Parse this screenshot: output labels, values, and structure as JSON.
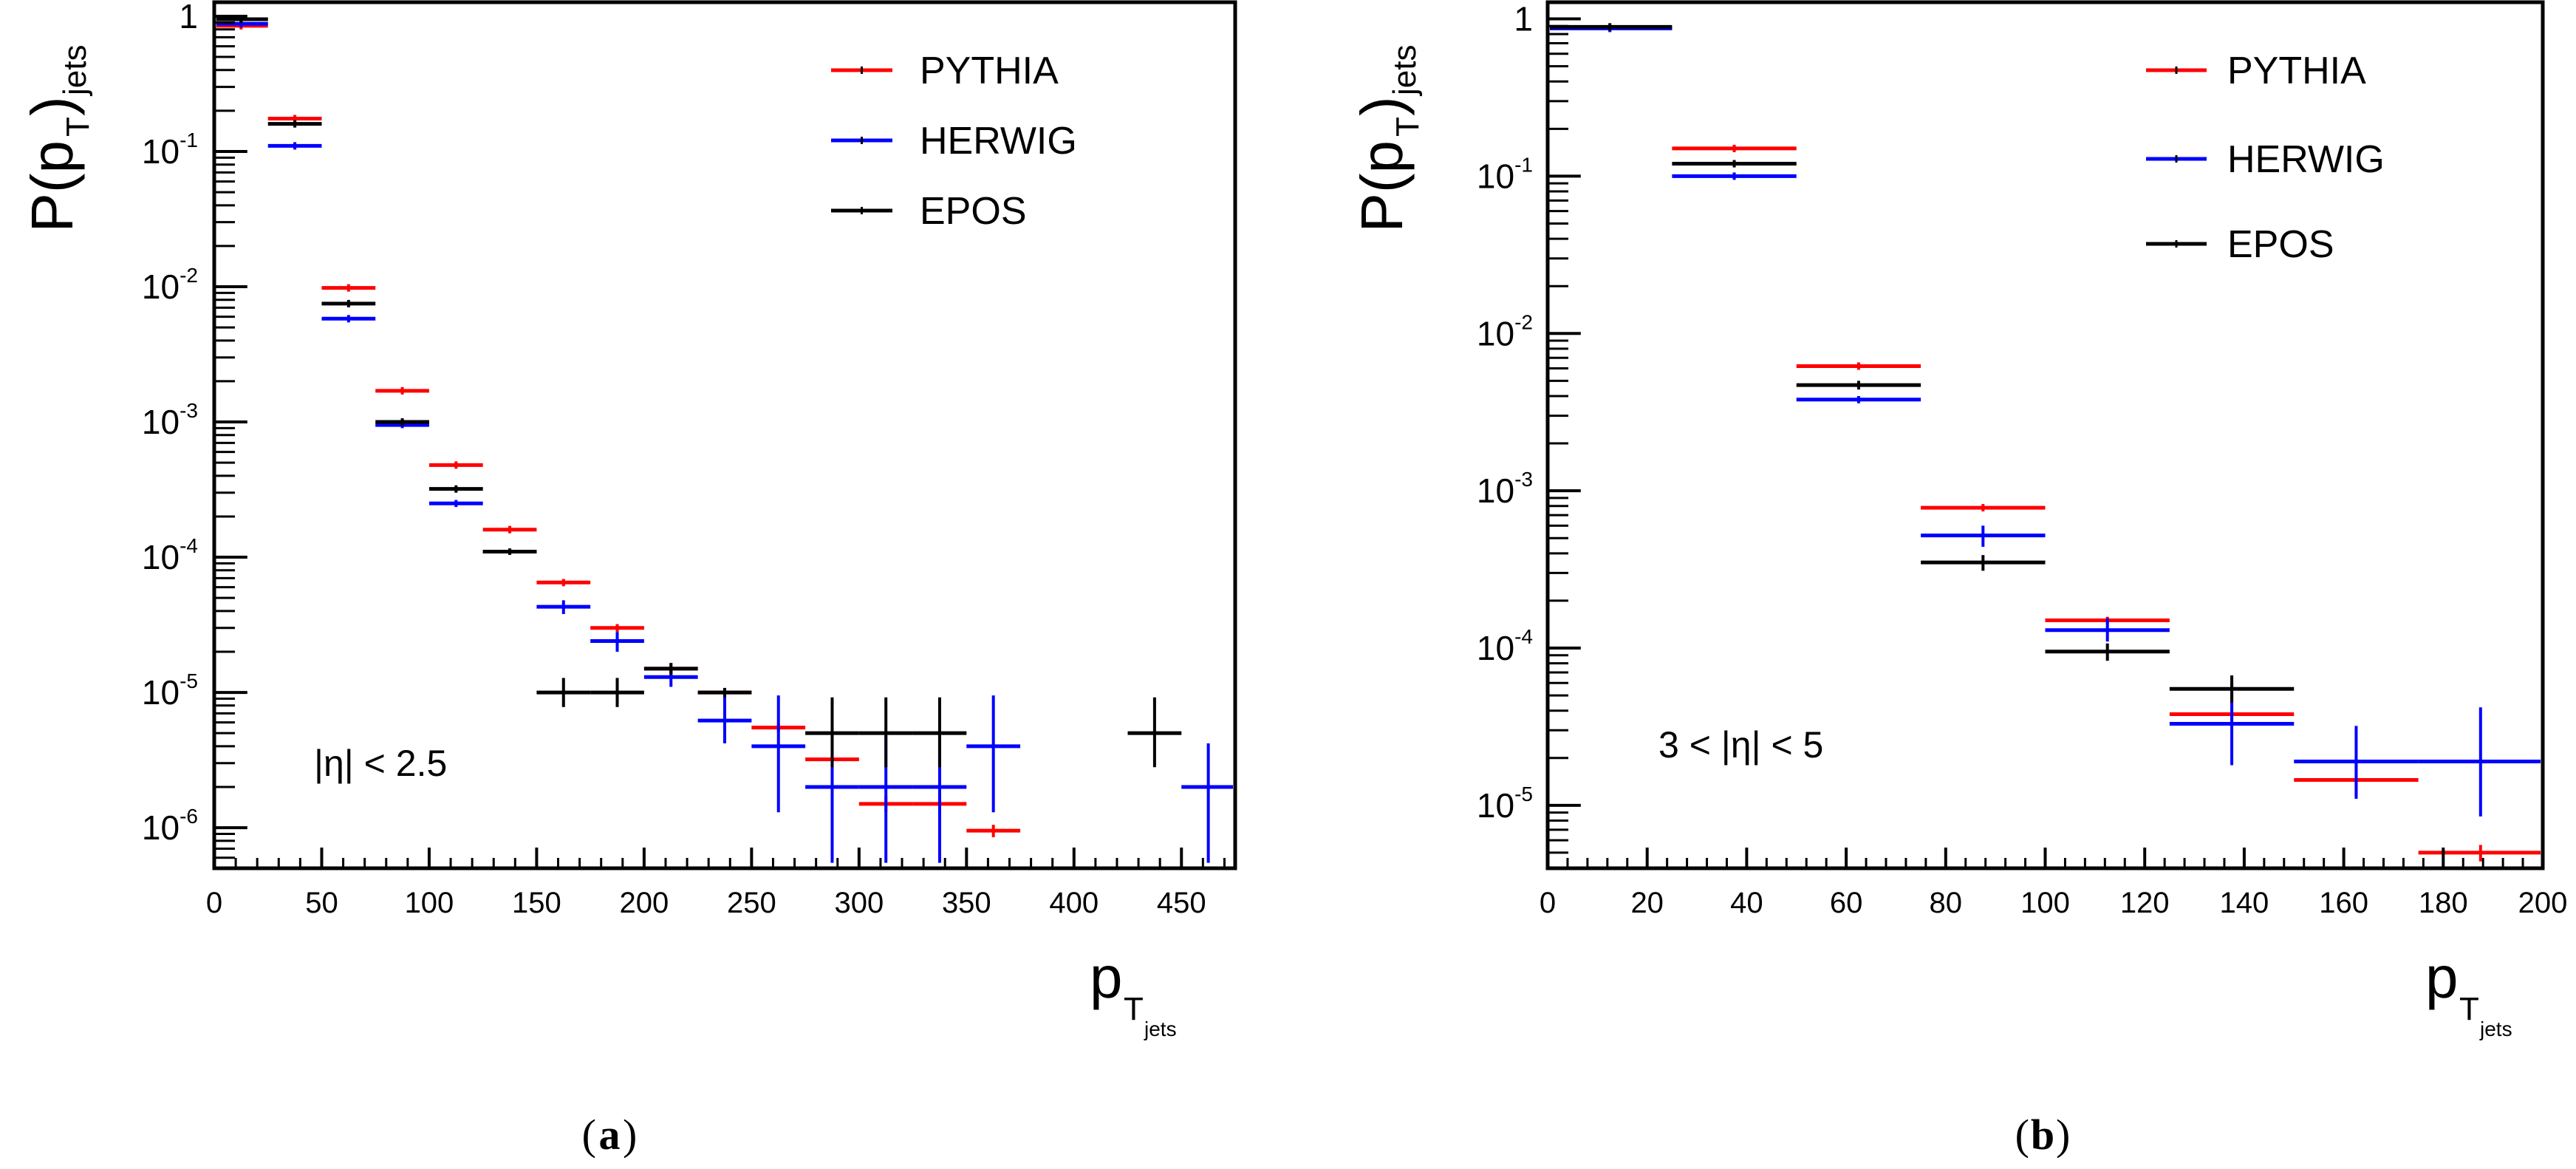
{
  "chart_data": [
    {
      "type": "line",
      "panel": "a",
      "caption_letter": "a",
      "x_tick_labels": [
        "0",
        "50",
        "100",
        "150",
        "200",
        "250",
        "300",
        "350",
        "400",
        "450"
      ],
      "x_ticks": [
        0,
        50,
        100,
        150,
        200,
        250,
        300,
        350,
        400,
        450
      ],
      "xlim": [
        0,
        475
      ],
      "ylim_log10": [
        -6.3,
        0.12
      ],
      "y_decades": [
        0,
        -1,
        -2,
        -3,
        -4,
        -5,
        -6
      ],
      "ylabel": {
        "main": "P(p",
        "sub": "T",
        "close": ")",
        "subscript": "jets"
      },
      "xlabel": {
        "main": "p",
        "sub": "T",
        "subsub": "jets"
      },
      "annotation": "|η| < 2.5",
      "legend": [
        {
          "name": "PYTHIA",
          "color": "#ff0000"
        },
        {
          "name": "HERWIG",
          "color": "#0000ff"
        },
        {
          "name": "EPOS",
          "color": "#000000"
        }
      ],
      "series": [
        {
          "name": "PYTHIA",
          "color": "#ff0000",
          "points": [
            [
              12.5,
              25,
              0.85,
              0.85,
              0.85
            ],
            [
              37.5,
              25,
              0.175,
              0.172,
              0.178
            ],
            [
              62.5,
              25,
              0.0098,
              0.0094,
              0.0102
            ],
            [
              87.5,
              25,
              0.0017,
              0.00162,
              0.00178
            ],
            [
              112.5,
              25,
              0.00048,
              0.00046,
              0.0005
            ],
            [
              137.5,
              25,
              0.00016,
              0.000152,
              0.000168
            ],
            [
              162.5,
              25,
              6.5e-05,
              6.1e-05,
              6.9e-05
            ],
            [
              187.5,
              25,
              3e-05,
              2.8e-05,
              3.2e-05
            ],
            [
              212.5,
              25,
              1.5e-05,
              1.35e-05,
              1.65e-05
            ],
            [
              237.5,
              25,
              1e-05,
              9.2e-06,
              1.08e-05
            ],
            [
              262.5,
              25,
              5.5e-06,
              5.1e-06,
              5.9e-06
            ],
            [
              287.5,
              25,
              3.2e-06,
              2.9e-06,
              3.5e-06
            ],
            [
              312.5,
              25,
              1.5e-06,
              1.3e-06,
              1.7e-06
            ],
            [
              337.5,
              25,
              1.5e-06,
              1.3e-06,
              1.7e-06
            ],
            [
              362.5,
              25,
              9.5e-07,
              8.5e-07,
              1.05e-06
            ]
          ]
        },
        {
          "name": "HERWIG",
          "color": "#0000ff",
          "points": [
            [
              12.5,
              25,
              0.88,
              0.88,
              0.88
            ],
            [
              37.5,
              25,
              0.11,
              0.108,
              0.112
            ],
            [
              62.5,
              25,
              0.0058,
              0.0056,
              0.006
            ],
            [
              87.5,
              25,
              0.00095,
              0.0009,
              0.001
            ],
            [
              112.5,
              25,
              0.00025,
              0.000235,
              0.000265
            ],
            [
              137.5,
              25,
              0.00011,
              0.000104,
              0.000116
            ],
            [
              162.5,
              25,
              4.3e-05,
              3.8e-05,
              4.8e-05
            ],
            [
              187.5,
              25,
              2.4e-05,
              2e-05,
              2.8e-05
            ],
            [
              212.5,
              25,
              1.3e-05,
              1.1e-05,
              1.5e-05
            ],
            [
              237.5,
              25,
              6.2e-06,
              4.2e-06,
              9.5e-06
            ],
            [
              262.5,
              25,
              4e-06,
              1.3e-06,
              9.5e-06
            ],
            [
              287.5,
              25,
              2e-06,
              5.5e-07,
              4.8e-06
            ],
            [
              312.5,
              25,
              2e-06,
              5.5e-07,
              4.8e-06
            ],
            [
              337.5,
              25,
              2e-06,
              5.5e-07,
              4.8e-06
            ],
            [
              362.5,
              25,
              4e-06,
              1.3e-06,
              9.5e-06
            ],
            [
              462.5,
              25,
              2e-06,
              5.5e-07,
              4.2e-06
            ]
          ]
        },
        {
          "name": "EPOS",
          "color": "#000000",
          "points": [
            [
              12.5,
              25,
              0.95,
              0.95,
              0.95
            ],
            [
              37.5,
              25,
              0.16,
              0.155,
              0.165
            ],
            [
              62.5,
              25,
              0.0075,
              0.0072,
              0.0078
            ],
            [
              87.5,
              25,
              0.001,
              0.00095,
              0.00105
            ],
            [
              112.5,
              25,
              0.00032,
              0.0003,
              0.00034
            ],
            [
              137.5,
              25,
              0.00011,
              0.000104,
              0.000116
            ],
            [
              162.5,
              25,
              1e-05,
              7.8e-06,
              1.28e-05
            ],
            [
              187.5,
              25,
              1e-05,
              7.8e-06,
              1.28e-05
            ],
            [
              212.5,
              25,
              1.5e-05,
              1.35e-05,
              1.65e-05
            ],
            [
              237.5,
              25,
              1e-05,
              9.2e-06,
              1.08e-05
            ],
            [
              287.5,
              25,
              5e-06,
              2.8e-06,
              9.2e-06
            ],
            [
              312.5,
              25,
              5e-06,
              2.8e-06,
              9.2e-06
            ],
            [
              337.5,
              25,
              5e-06,
              2.8e-06,
              9.2e-06
            ],
            [
              437.5,
              25,
              5e-06,
              2.8e-06,
              9.2e-06
            ]
          ]
        }
      ]
    },
    {
      "type": "line",
      "panel": "b",
      "caption_letter": "b",
      "x_tick_labels": [
        "0",
        "20",
        "40",
        "60",
        "80",
        "100",
        "120",
        "140",
        "160",
        "180",
        "200"
      ],
      "x_ticks": [
        0,
        20,
        40,
        60,
        80,
        100,
        120,
        140,
        160,
        180,
        200
      ],
      "xlim": [
        0,
        200
      ],
      "ylim_log10": [
        -5.4,
        0.12
      ],
      "y_decades": [
        0,
        -1,
        -2,
        -3,
        -4,
        -5
      ],
      "ylabel": {
        "main": "P(p",
        "sub": "T",
        "close": ")",
        "subscript": "jets"
      },
      "xlabel": {
        "main": "p",
        "sub": "T",
        "subsub": "jets"
      },
      "annotation": "3 < |η| < 5",
      "legend": [
        {
          "name": "PYTHIA",
          "color": "#ff0000"
        },
        {
          "name": "HERWIG",
          "color": "#0000ff"
        },
        {
          "name": "EPOS",
          "color": "#000000"
        }
      ],
      "series": [
        {
          "name": "PYTHIA",
          "color": "#ff0000",
          "points": [
            [
              12.5,
              25,
              0.87,
              0.87,
              0.87
            ],
            [
              37.5,
              25,
              0.15,
              0.147,
              0.153
            ],
            [
              62.5,
              25,
              0.0062,
              0.006,
              0.0064
            ],
            [
              87.5,
              25,
              0.00078,
              0.00075,
              0.00081
            ],
            [
              112.5,
              25,
              0.00015,
              0.000142,
              0.000158
            ],
            [
              137.5,
              25,
              3.8e-05,
              3.3e-05,
              4.3e-05
            ],
            [
              162.5,
              25,
              1.45e-05,
              1.15e-05,
              1.85e-05
            ],
            [
              187.5,
              25,
              5e-06,
              4.4e-06,
              5.6e-06
            ]
          ]
        },
        {
          "name": "HERWIG",
          "color": "#0000ff",
          "points": [
            [
              12.5,
              25,
              0.87,
              0.87,
              0.87
            ],
            [
              37.5,
              25,
              0.1,
              0.098,
              0.102
            ],
            [
              62.5,
              25,
              0.0038,
              0.0036,
              0.004
            ],
            [
              87.5,
              25,
              0.00052,
              0.00044,
              0.0006
            ],
            [
              112.5,
              25,
              0.00013,
              0.00011,
              0.000155
            ],
            [
              137.5,
              25,
              3.3e-05,
              1.8e-05,
              6e-05
            ],
            [
              162.5,
              25,
              1.9e-05,
              1.1e-05,
              3.2e-05
            ],
            [
              187.5,
              25,
              1.9e-05,
              8.5e-06,
              4.2e-05
            ]
          ]
        },
        {
          "name": "EPOS",
          "color": "#000000",
          "points": [
            [
              12.5,
              25,
              0.89,
              0.89,
              0.89
            ],
            [
              37.5,
              25,
              0.12,
              0.115,
              0.125
            ],
            [
              62.5,
              25,
              0.0047,
              0.0044,
              0.005
            ],
            [
              87.5,
              25,
              0.00035,
              0.00031,
              0.00039
            ],
            [
              112.5,
              25,
              9.5e-05,
              8.3e-05,
              0.000107
            ],
            [
              137.5,
              25,
              5.5e-05,
              4.5e-05,
              6.7e-05
            ]
          ]
        }
      ]
    }
  ]
}
